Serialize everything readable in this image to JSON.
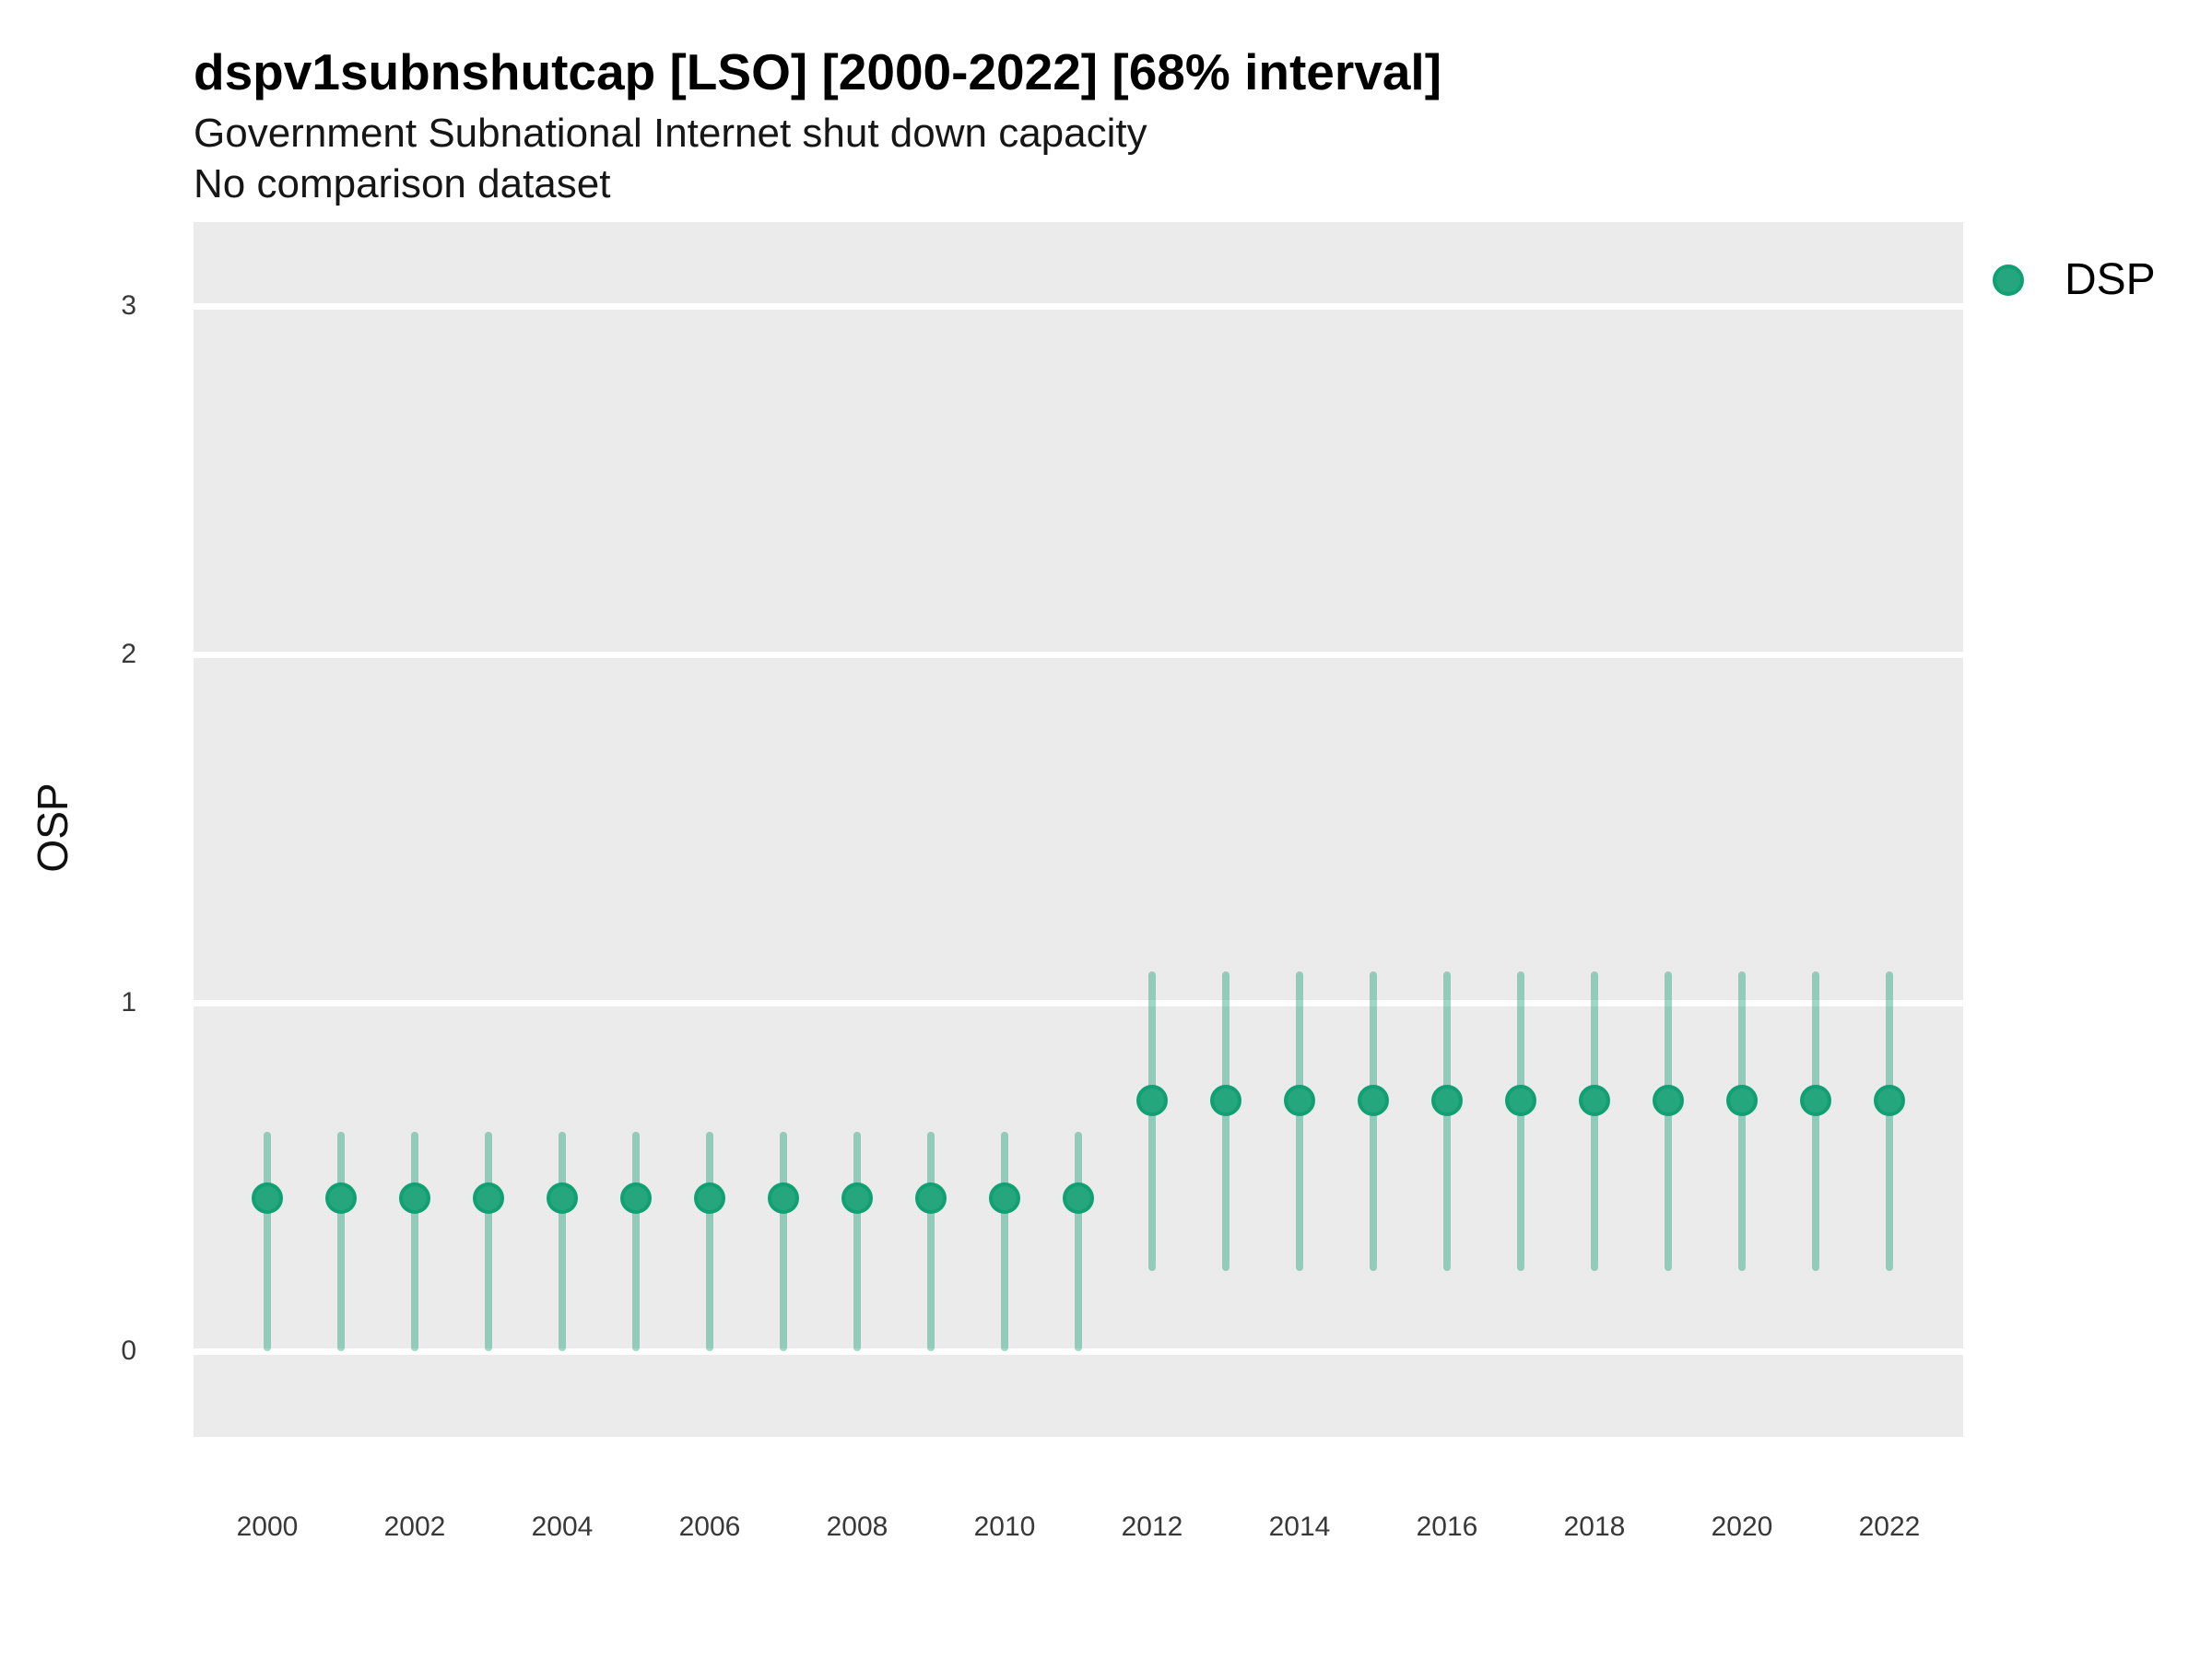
{
  "header": {
    "title": "dspv1subnshutcap [LSO] [2000-2022] [68% interval]",
    "subtitle": "Government Subnational Internet shut down capacity",
    "caption": "No comparison dataset"
  },
  "legend": {
    "position": "right-top",
    "items": [
      {
        "label": "DSP",
        "swatch": "circle-icon"
      }
    ]
  },
  "colors": {
    "point_fill": "#26A67D",
    "point_stroke": "#10A073",
    "interval_bar": "rgba(27,158,119,0.42)",
    "panel_background": "#EBEBEB",
    "gridline": "#FFFFFF"
  },
  "y_axis": {
    "label": "OSP",
    "ticks": [
      0,
      1,
      2,
      3
    ]
  },
  "x_axis": {
    "ticks": [
      2000,
      2002,
      2004,
      2006,
      2008,
      2010,
      2012,
      2014,
      2016,
      2018,
      2020,
      2022
    ]
  },
  "chart_data": {
    "type": "scatter",
    "style": "pointrange",
    "title": "dspv1subnshutcap [LSO] [2000-2022] [68% interval]",
    "subtitle": "Government Subnational Internet shut down capacity",
    "note": "No comparison dataset",
    "interval": "68%",
    "xlabel": "",
    "ylabel": "OSP",
    "xlim": [
      1999,
      2023
    ],
    "ylim": [
      -0.246,
      3.242
    ],
    "grid": "horizontal-major-only",
    "legend_position": "right-top",
    "x": [
      2000,
      2001,
      2002,
      2003,
      2004,
      2005,
      2006,
      2007,
      2008,
      2009,
      2010,
      2011,
      2012,
      2013,
      2014,
      2015,
      2016,
      2017,
      2018,
      2019,
      2020,
      2021,
      2022
    ],
    "series": [
      {
        "name": "DSP",
        "values": [
          0.44,
          0.44,
          0.44,
          0.44,
          0.44,
          0.44,
          0.44,
          0.44,
          0.44,
          0.44,
          0.44,
          0.44,
          0.72,
          0.72,
          0.72,
          0.72,
          0.72,
          0.72,
          0.72,
          0.72,
          0.72,
          0.72,
          0.72
        ],
        "lower": [
          0.0,
          0.0,
          0.0,
          0.0,
          0.0,
          0.0,
          0.0,
          0.0,
          0.0,
          0.0,
          0.0,
          0.0,
          0.23,
          0.23,
          0.23,
          0.23,
          0.23,
          0.23,
          0.23,
          0.23,
          0.23,
          0.23,
          0.23
        ],
        "upper": [
          0.63,
          0.63,
          0.63,
          0.63,
          0.63,
          0.63,
          0.63,
          0.63,
          0.63,
          0.63,
          0.63,
          0.63,
          1.09,
          1.09,
          1.09,
          1.09,
          1.09,
          1.09,
          1.09,
          1.09,
          1.09,
          1.09,
          1.09
        ]
      }
    ]
  }
}
